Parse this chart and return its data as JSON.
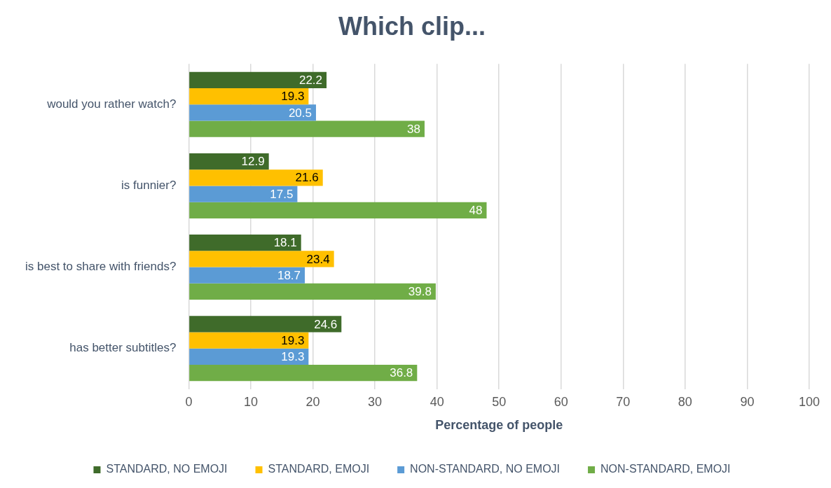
{
  "chart_data": {
    "type": "bar",
    "orientation": "horizontal",
    "title": "Which clip...",
    "xlabel": "Percentage of people",
    "categories": [
      "would you rather watch?",
      "is funnier?",
      "is best to share with friends?",
      "has better subtitles?"
    ],
    "series": [
      {
        "name": "STANDARD, NO EMOJI",
        "color": "#3f6b2a",
        "values": [
          22.2,
          12.9,
          18.1,
          24.6
        ]
      },
      {
        "name": "STANDARD, EMOJI",
        "color": "#ffc000",
        "values": [
          19.3,
          21.6,
          23.4,
          19.3
        ]
      },
      {
        "name": "NON-STANDARD, NO EMOJI",
        "color": "#5b9bd5",
        "values": [
          20.5,
          17.5,
          18.7,
          19.3
        ]
      },
      {
        "name": "NON-STANDARD, EMOJI",
        "color": "#70ad47",
        "values": [
          38,
          48,
          39.8,
          36.8
        ]
      }
    ],
    "xlim": [
      0,
      100
    ],
    "xticks": [
      0,
      10,
      20,
      30,
      40,
      50,
      60,
      70,
      80,
      90,
      100
    ],
    "grid": "x",
    "legend": "bottom",
    "data_labels": true
  }
}
